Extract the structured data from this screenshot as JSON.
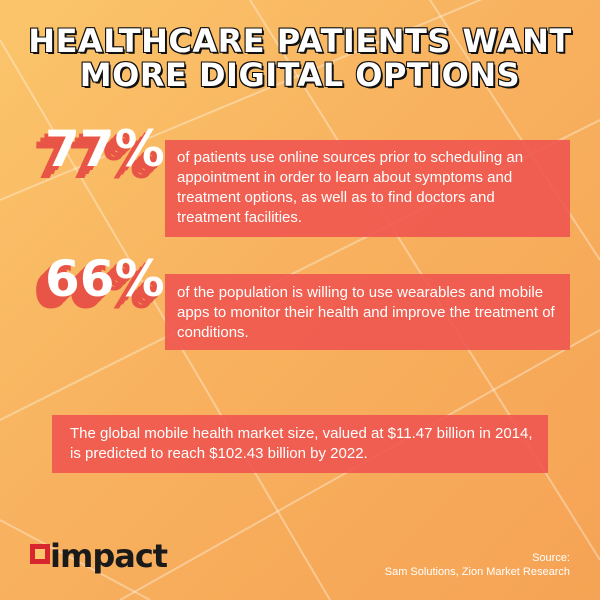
{
  "title": {
    "line1": "HEALTHCARE PATIENTS WANT",
    "line2": "MORE DIGITAL OPTIONS"
  },
  "stats": [
    {
      "value": "77%",
      "text": "of patients use online sources prior to scheduling an appointment in order to learn about symptoms and treatment options, as well as to find doctors and treatment facilities."
    },
    {
      "value": "66%",
      "text": "of the population is willing to use wearables and mobile apps to monitor their health and improve the treatment of conditions."
    }
  ],
  "market": {
    "text": "The global mobile health market size, valued at $11.47 billion in 2014, is predicted to reach $102.43 billion by 2022."
  },
  "logo": {
    "name": "impact",
    "icon": "impact-logo-mark",
    "brand_color": "#d8262e"
  },
  "source": {
    "label": "Source:",
    "text": "Sam Solutions, Zion Market Research"
  },
  "colors": {
    "background": "#f8b25f",
    "box": "#ee534e",
    "text": "#ffffff",
    "title_outline": "#111111"
  }
}
